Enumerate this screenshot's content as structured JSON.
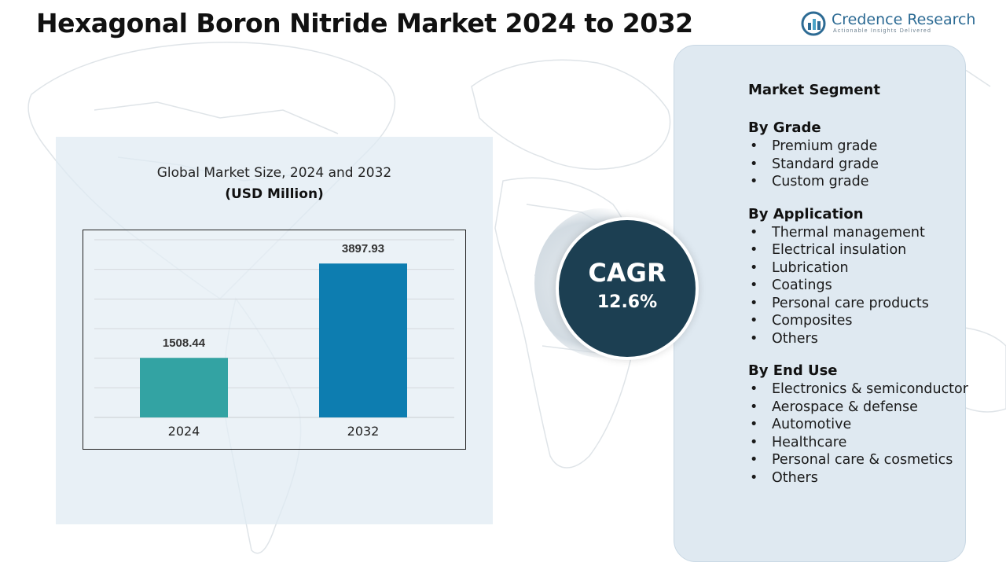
{
  "title": "Hexagonal Boron Nitride Market 2024 to 2032",
  "logo": {
    "name": "Credence Research",
    "tagline": "Actionable Insights Delivered",
    "icon": "credence-logo-icon"
  },
  "colors": {
    "bar_2024": "#33a3a3",
    "bar_2032": "#0d7db0",
    "cagr_circle": "#1c3f52",
    "panel": "#dfe9f1"
  },
  "chart_data": {
    "type": "bar",
    "title": "Global Market Size, 2024 and 2032",
    "unit": "(USD Million)",
    "categories": [
      "2024",
      "2032"
    ],
    "values": [
      1508.44,
      3897.93
    ],
    "value_labels": [
      "1508.44",
      "3897.93"
    ],
    "ylim": [
      0,
      4500
    ],
    "grid": true,
    "xlabel": "",
    "ylabel": ""
  },
  "cagr": {
    "label": "CAGR",
    "value": "12.6%"
  },
  "segments": {
    "heading": "Market Segment",
    "groups": [
      {
        "title": "By Grade",
        "items": [
          "Premium grade",
          "Standard grade",
          "Custom grade"
        ]
      },
      {
        "title": "By Application",
        "items": [
          "Thermal management",
          "Electrical insulation",
          "Lubrication",
          "Coatings",
          "Personal care products",
          "Composites",
          "Others"
        ]
      },
      {
        "title": "By End Use",
        "items": [
          "Electronics & semiconductor",
          "Aerospace & defense",
          "Automotive",
          "Healthcare",
          "Personal care & cosmetics",
          "Others"
        ]
      }
    ]
  }
}
